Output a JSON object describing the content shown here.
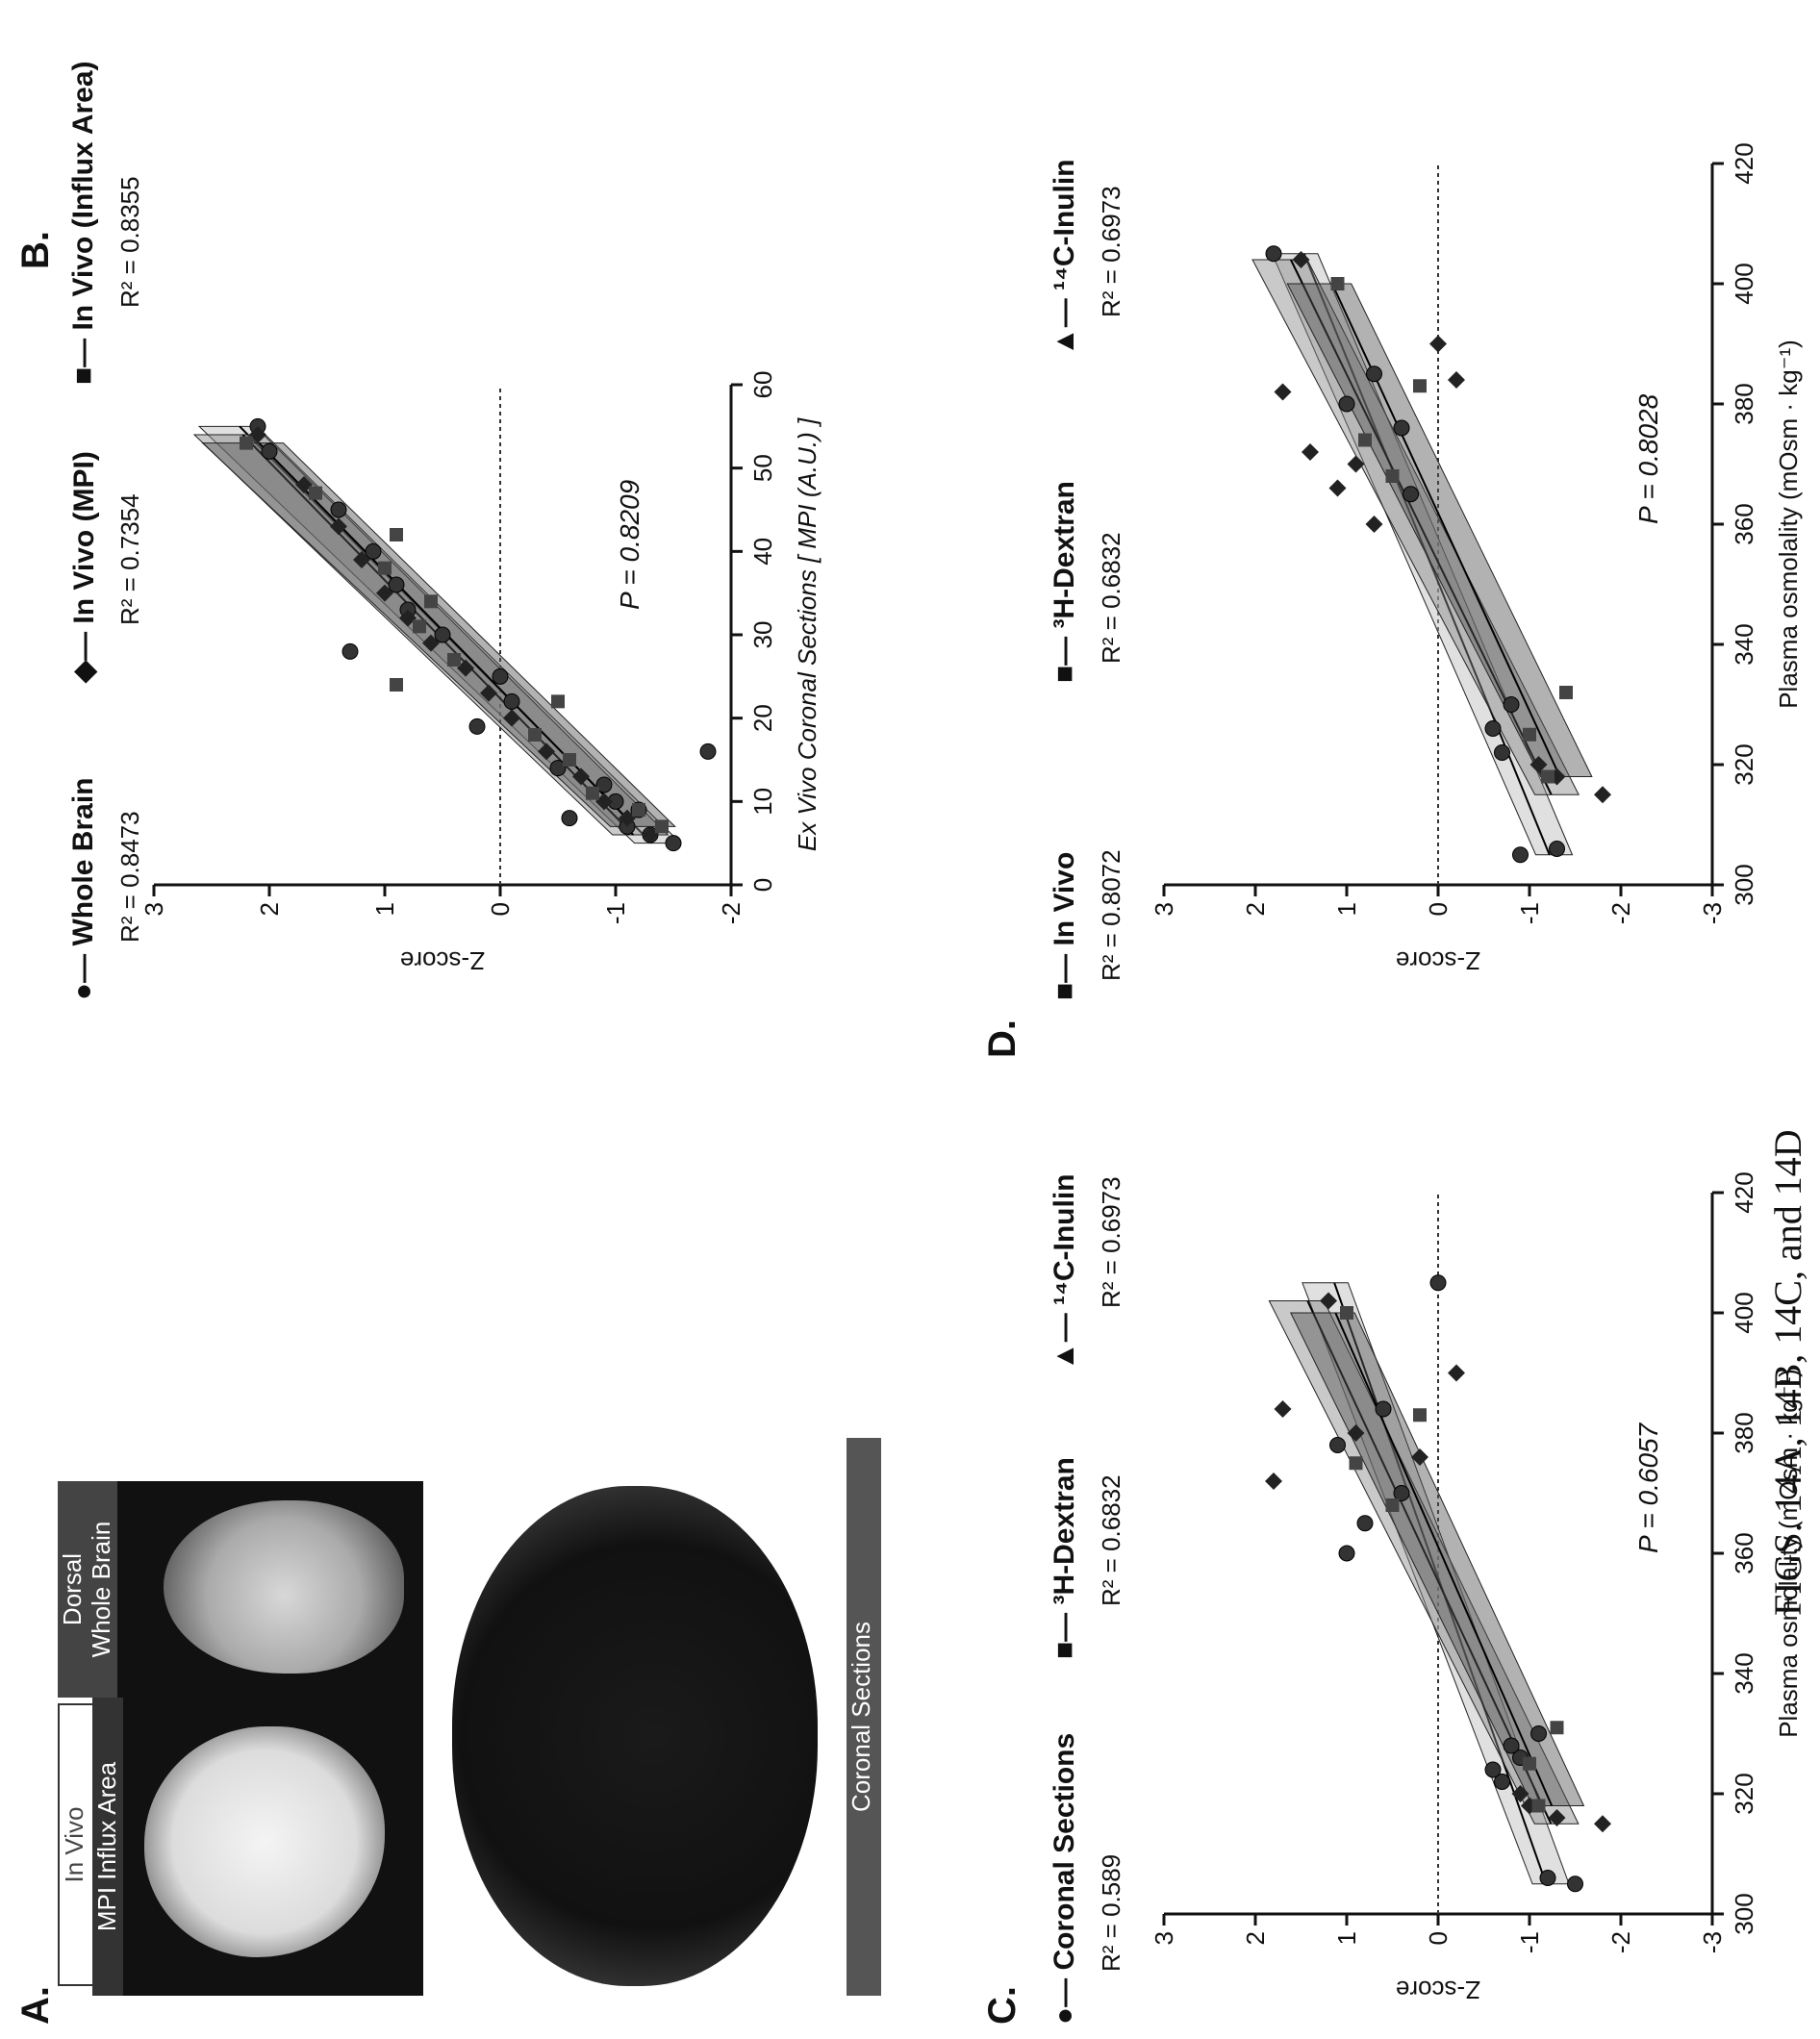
{
  "panels": {
    "a": {
      "letter": "A.",
      "labels": {
        "in_vivo": "In Vivo",
        "mpi_influx": "MPI Influx Area",
        "dorsal": "Dorsal",
        "whole_brain": "Whole Brain",
        "coronal": "Coronal Sections"
      }
    },
    "b": {
      "letter": "B.",
      "legend": [
        "Whole Brain",
        "In Vivo (MPI)",
        "In Vivo (Influx Area)"
      ],
      "r2": [
        "R² = 0.8473",
        "R² = 0.7354",
        "R² = 0.8355"
      ],
      "p_text": "P = 0.8209"
    },
    "c": {
      "letter": "C.",
      "legend": [
        "Coronal Sections",
        "³H-Dextran",
        "¹⁴C-Inulin"
      ],
      "r2": [
        "R² = 0.589",
        "R² = 0.6832",
        "R² = 0.6973"
      ],
      "p_text": "P = 0.6057"
    },
    "d": {
      "letter": "D.",
      "legend": [
        "In Vivo",
        "³H-Dextran",
        "¹⁴C-Inulin"
      ],
      "r2": [
        "R² = 0.8072",
        "R² = 0.6832",
        "R² = 0.6973"
      ],
      "p_text": "P = 0.8028"
    }
  },
  "caption": "FIGS. 14A, 14B, 14C, and 14D",
  "chart_data": [
    {
      "panel": "B",
      "type": "scatter",
      "xlabel": "Ex Vivo Coronal Sections [ MPI (A.U.) ]",
      "ylabel": "Z-score",
      "xlim": [
        0,
        60
      ],
      "ylim": [
        -2,
        3
      ],
      "xticks": [
        0,
        10,
        20,
        30,
        40,
        50,
        60
      ],
      "yticks": [
        -2,
        -1,
        0,
        1,
        2,
        3
      ],
      "reference_line": 0,
      "series": [
        {
          "name": "Whole Brain",
          "x": [
            5,
            6,
            7,
            8,
            9,
            10,
            12,
            14,
            16,
            19,
            22,
            25,
            28,
            30,
            33,
            36,
            40,
            45,
            52,
            55
          ],
          "y": [
            -1.5,
            -1.3,
            -1.1,
            -0.6,
            -1.2,
            -1.0,
            -0.9,
            -0.5,
            -1.8,
            0.2,
            -0.1,
            0.0,
            1.3,
            0.5,
            0.8,
            0.9,
            1.1,
            1.4,
            2.0,
            2.1
          ]
        },
        {
          "name": "In Vivo (MPI)",
          "x": [
            6,
            8,
            10,
            13,
            16,
            20,
            23,
            26,
            29,
            32,
            35,
            39,
            43,
            48,
            54
          ],
          "y": [
            -1.3,
            -1.1,
            -0.9,
            -0.7,
            -0.4,
            -0.1,
            0.1,
            0.3,
            0.6,
            0.8,
            1.0,
            1.2,
            1.4,
            1.7,
            2.1
          ]
        },
        {
          "name": "In Vivo (Influx Area)",
          "x": [
            7,
            9,
            11,
            15,
            18,
            22,
            24,
            27,
            31,
            34,
            38,
            42,
            47,
            53
          ],
          "y": [
            -1.4,
            -1.2,
            -0.8,
            -0.6,
            -0.3,
            -0.5,
            0.9,
            0.4,
            0.7,
            0.6,
            1.0,
            0.9,
            1.6,
            2.2
          ]
        }
      ]
    },
    {
      "panel": "C",
      "type": "scatter",
      "xlabel": "Plasma osmolality (mOsm · kg⁻¹)",
      "ylabel": "Z-score",
      "xlim": [
        300,
        420
      ],
      "ylim": [
        -3,
        3
      ],
      "xticks": [
        300,
        320,
        340,
        360,
        380,
        400,
        420
      ],
      "yticks": [
        -3,
        -2,
        -1,
        0,
        1,
        2,
        3
      ],
      "reference_line": 0,
      "series": [
        {
          "name": "Coronal Sections",
          "x": [
            305,
            306,
            322,
            324,
            326,
            328,
            330,
            360,
            365,
            370,
            378,
            384,
            405
          ],
          "y": [
            -1.5,
            -1.2,
            -0.7,
            -0.6,
            -0.9,
            -0.8,
            -1.1,
            1.0,
            0.8,
            0.4,
            1.1,
            0.6,
            0.0
          ]
        },
        {
          "name": "³H-Dextran",
          "x": [
            315,
            316,
            318,
            320,
            372,
            376,
            380,
            384,
            390,
            402
          ],
          "y": [
            -1.8,
            -1.3,
            -1.0,
            -0.9,
            1.8,
            0.2,
            0.9,
            1.7,
            -0.2,
            1.2
          ]
        },
        {
          "name": "¹⁴C-Inulin",
          "x": [
            318,
            325,
            331,
            368,
            375,
            383,
            400
          ],
          "y": [
            -1.1,
            -1.0,
            -1.3,
            0.5,
            0.9,
            0.2,
            1.0
          ]
        }
      ]
    },
    {
      "panel": "D",
      "type": "scatter",
      "xlabel": "Plasma osmolality (mOsm · kg⁻¹)",
      "ylabel": "Z-score",
      "xlim": [
        300,
        420
      ],
      "ylim": [
        -3,
        3
      ],
      "xticks": [
        300,
        320,
        340,
        360,
        380,
        400,
        420
      ],
      "yticks": [
        -3,
        -2,
        -1,
        0,
        1,
        2,
        3
      ],
      "reference_line": 0,
      "series": [
        {
          "name": "In Vivo",
          "x": [
            305,
            306,
            322,
            326,
            330,
            365,
            376,
            380,
            385,
            405
          ],
          "y": [
            -0.9,
            -1.3,
            -0.7,
            -0.6,
            -0.8,
            0.3,
            0.4,
            1.0,
            0.7,
            1.8
          ]
        },
        {
          "name": "³H-Dextran",
          "x": [
            315,
            318,
            320,
            360,
            366,
            370,
            372,
            382,
            384,
            390,
            404
          ],
          "y": [
            -1.8,
            -1.3,
            -1.1,
            0.7,
            1.1,
            0.9,
            1.4,
            1.7,
            -0.2,
            0.0,
            1.5
          ]
        },
        {
          "name": "¹⁴C-Inulin",
          "x": [
            318,
            325,
            332,
            368,
            374,
            383,
            400
          ],
          "y": [
            -1.2,
            -1.0,
            -1.4,
            0.5,
            0.8,
            0.2,
            1.1
          ]
        }
      ]
    }
  ]
}
